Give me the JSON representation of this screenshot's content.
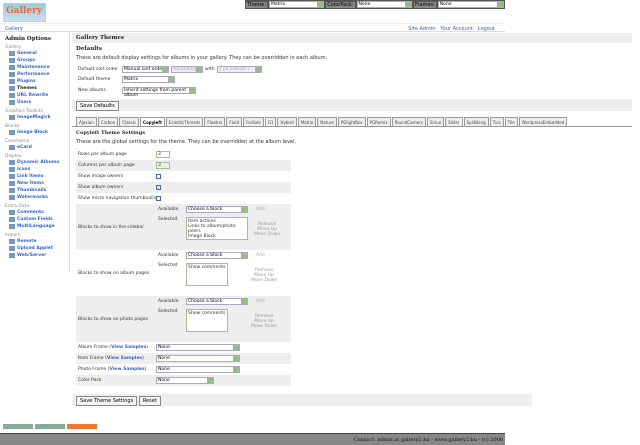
{
  "logo": "Gallery",
  "topbar": {
    "theme_label": "Theme:",
    "theme": "Matrix",
    "colorpack_label": "ColorPack:",
    "colorpack": "None",
    "frames_label": "Frames:",
    "frames": "None"
  },
  "breadcrumb": "Gallery",
  "links": [
    "Site Admin",
    "Your Account",
    "Logout"
  ],
  "sidebar": {
    "title": "Admin Options",
    "groups": [
      {
        "name": "Gallery",
        "items": [
          "General",
          "Groups",
          "Maintenance",
          "Performance",
          "Plugins",
          "Themes",
          "URL Rewrite",
          "Users"
        ]
      },
      {
        "name": "Graphics Toolkits",
        "items": [
          "ImageMagick"
        ]
      },
      {
        "name": "Blocks",
        "items": [
          "Image Block"
        ]
      },
      {
        "name": "Commerce",
        "items": [
          "eCard"
        ]
      },
      {
        "name": "Display",
        "items": [
          "Dynamic Albums",
          "Icons",
          "Link Items",
          "New Items",
          "Thumbnails",
          "Watermarks"
        ]
      },
      {
        "name": "Extra Data",
        "items": [
          "Comments",
          "Custom Fields",
          "MultiLanguage"
        ]
      },
      {
        "name": "Import",
        "items": [
          "Remote",
          "Upload Applet",
          "Web/Server"
        ]
      }
    ],
    "current": "Themes"
  },
  "main": {
    "title": "Gallery Themes",
    "defaults_title": "Defaults",
    "defaults_desc": "These are default display settings for albums in your gallery. They can be overridden in each album.",
    "sort_label": "Default sort order",
    "sort": "Manual sort order",
    "sort_dir": "Ascending",
    "with_label": "with",
    "with": "« no presort »",
    "theme_label": "Default theme",
    "theme": "Matrix",
    "new_label": "New albums",
    "new": "Inherit settings from parent album",
    "save_defaults": "Save Defaults",
    "tabs": [
      "Ajaxian",
      "Carbon",
      "Classic",
      "Copyleft",
      "EclecticThreads",
      "Floatrix",
      "Fluid",
      "ForSale",
      "G1",
      "Hybrid",
      "Matrix",
      "Nature",
      "PGlightBox",
      "PGRemix",
      "RoundCorners",
      "Siriux",
      "Slider",
      "SplitBang",
      "Tico",
      "Tile",
      "WordpressEmbedded"
    ],
    "active_tab": "Copyleft",
    "settings_title": "Copyleft Theme Settings",
    "settings_desc": "These are the global settings for the theme. They can be overridden at the album level.",
    "rows": [
      {
        "label": "Rows per album page",
        "value": "3"
      },
      {
        "label": "Columns per album page",
        "value": "3"
      }
    ],
    "checks": [
      {
        "label": "Show image owners",
        "checked": false
      },
      {
        "label": "Show album owners",
        "checked": true
      },
      {
        "label": "Show micro navigation thumbnails",
        "checked": false
      }
    ],
    "available_label": "Available",
    "selected_label": "Selected",
    "choose": "Choose a block",
    "add": "Add",
    "remove": "Remove",
    "up": "Move Up",
    "down": "Move Down",
    "blocks": [
      {
        "label": "Blocks to show in the sidebar",
        "items": "Item actions\nLinks to album/photo peers\nImage Block"
      },
      {
        "label": "Blocks to show on album pages",
        "items": "Show comments"
      },
      {
        "label": "Blocks to show on photo pages",
        "items": "Show comments"
      }
    ],
    "view_samples": "View Samples",
    "frames": [
      {
        "label": "Album Frame",
        "value": "None"
      },
      {
        "label": "Item Frame",
        "value": "None"
      },
      {
        "label": "Photo Frame",
        "value": "None"
      }
    ],
    "colorpack_label": "Color Pack",
    "colorpack": "None",
    "save": "Save Theme Settings",
    "reset": "Reset"
  },
  "footer": "Contact: admin at gallery2.hu - www.gallery2.hu - (c) 2006"
}
